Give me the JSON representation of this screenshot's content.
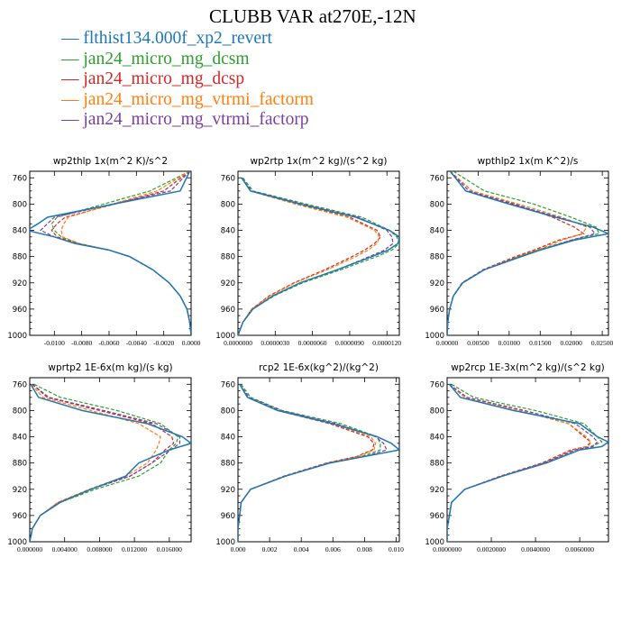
{
  "figure_title": "CLUBB VAR at270E,-12N",
  "legend": [
    {
      "label": "flthist134.000f_xp2_revert",
      "color": "#1f77b4",
      "dash": "solid"
    },
    {
      "label": "jan24_micro_mg_dcsm",
      "color": "#2ca02c",
      "dash": "dash"
    },
    {
      "label": "jan24_micro_mg_dcsp",
      "color": "#d62728",
      "dash": "dash"
    },
    {
      "label": "jan24_micro_mg_vtrmi_factorm",
      "color": "#ff7f0e",
      "dash": "dash"
    },
    {
      "label": "jan24_micro_mg_vtrmi_factorp",
      "color": "#7b3f9e",
      "dash": "dash"
    }
  ],
  "chart_data": [
    {
      "type": "line",
      "title": "wp2thlp   1x(m^2 K)/s^2",
      "y": [
        750,
        780,
        820,
        830,
        840,
        850,
        860,
        870,
        880,
        900,
        920,
        940,
        960,
        980,
        1000
      ],
      "ylim": [
        1000,
        750
      ],
      "yticks": [
        760,
        800,
        840,
        880,
        920,
        960,
        1000
      ],
      "xlim": [
        -0.0118,
        0.0
      ],
      "xticks": [
        -0.01,
        -0.008,
        -0.006,
        -0.004,
        -0.002,
        0.0
      ],
      "xtick_labels": [
        "-0.0100",
        "-0.0080",
        "-0.0060",
        "-0.0040",
        "-0.0020",
        "0.0000"
      ],
      "series": [
        {
          "values": [
            -0.0001,
            -0.0008,
            -0.0105,
            -0.0112,
            -0.012,
            -0.01,
            -0.0085,
            -0.006,
            -0.0045,
            -0.0028,
            -0.0016,
            -0.0008,
            -0.0003,
            -0.0001,
            0.0
          ]
        },
        {
          "values": [
            -0.0001,
            -0.003,
            -0.0098,
            -0.0102,
            -0.01,
            -0.0095,
            -0.0082,
            -0.006,
            -0.0045,
            -0.0028,
            -0.0016,
            -0.0008,
            -0.0003,
            -0.0001,
            0.0
          ]
        },
        {
          "values": [
            -0.0001,
            -0.002,
            -0.0092,
            -0.0098,
            -0.0102,
            -0.0098,
            -0.0083,
            -0.006,
            -0.0045,
            -0.0028,
            -0.0016,
            -0.0008,
            -0.0003,
            -0.0001,
            0.0
          ]
        },
        {
          "values": [
            -0.0001,
            -0.0025,
            -0.009,
            -0.0093,
            -0.0095,
            -0.0094,
            -0.0082,
            -0.006,
            -0.0045,
            -0.0028,
            -0.0016,
            -0.0008,
            -0.0003,
            -0.0001,
            0.0
          ]
        },
        {
          "values": [
            -0.0001,
            -0.0015,
            -0.01,
            -0.0105,
            -0.011,
            -0.01,
            -0.0084,
            -0.006,
            -0.0045,
            -0.0028,
            -0.0016,
            -0.0008,
            -0.0003,
            -0.0001,
            0.0
          ]
        }
      ]
    },
    {
      "type": "line",
      "title": "wp2rtp   1x(m^2 kg)/(s^2 kg)",
      "y": [
        760,
        780,
        800,
        820,
        840,
        850,
        860,
        870,
        880,
        900,
        920,
        940,
        960,
        980,
        1000
      ],
      "ylim": [
        1000,
        750
      ],
      "yticks": [
        760,
        800,
        840,
        880,
        920,
        960,
        1000
      ],
      "xlim": [
        0.0,
        1.3e-05
      ],
      "xticks": [
        0.0,
        3e-06,
        6e-06,
        9e-06,
        1.2e-05
      ],
      "xtick_labels": [
        "0.0000000",
        "0.0000030",
        "0.0000060",
        "0.0000090",
        "0.0000120"
      ],
      "series": [
        {
          "values": [
            3e-07,
            1e-06,
            5e-06,
            9.5e-06,
            1.22e-05,
            1.3e-05,
            1.29e-05,
            1.21e-05,
            1.08e-05,
            8e-06,
            5e-06,
            2.8e-06,
            1.2e-06,
            4e-07,
            0.0
          ]
        },
        {
          "values": [
            4e-07,
            1.2e-06,
            5.5e-06,
            1e-05,
            1.22e-05,
            1.28e-05,
            1.3e-05,
            1.24e-05,
            1.12e-05,
            8.3e-06,
            5.2e-06,
            2.9e-06,
            1.2e-06,
            4e-07,
            0.0
          ]
        },
        {
          "values": [
            3e-07,
            1e-06,
            4.8e-06,
            9e-06,
            1.12e-05,
            1.15e-05,
            1.1e-05,
            1.02e-05,
            9.2e-06,
            7e-06,
            4.5e-06,
            2.5e-06,
            1.1e-06,
            4e-07,
            0.0
          ]
        },
        {
          "values": [
            3e-07,
            1e-06,
            4.6e-06,
            8.8e-06,
            1.1e-05,
            1.14e-05,
            1.12e-05,
            1.05e-05,
            9.5e-06,
            7.2e-06,
            4.6e-06,
            2.6e-06,
            1.1e-06,
            4e-07,
            0.0
          ]
        },
        {
          "values": [
            3e-07,
            1.1e-06,
            5.2e-06,
            9.7e-06,
            1.2e-05,
            1.24e-05,
            1.25e-05,
            1.18e-05,
            1.06e-05,
            8e-06,
            5e-06,
            2.8e-06,
            1.2e-06,
            4e-07,
            0.0
          ]
        }
      ]
    },
    {
      "type": "line",
      "title": "wpthlp2   1x(m K^2)/s",
      "y": [
        750,
        780,
        800,
        820,
        835,
        845,
        855,
        870,
        880,
        900,
        920,
        940,
        960,
        980,
        1000
      ],
      "ylim": [
        1000,
        750
      ],
      "yticks": [
        760,
        800,
        840,
        880,
        920,
        960,
        1000
      ],
      "xlim": [
        0.0,
        0.026
      ],
      "xticks": [
        0.0,
        0.005,
        0.01,
        0.015,
        0.02,
        0.025
      ],
      "xtick_labels": [
        "0.00000",
        "0.00500",
        "0.01000",
        "0.01500",
        "0.02000",
        "0.02500"
      ],
      "series": [
        {
          "values": [
            0.0005,
            0.003,
            0.01,
            0.0175,
            0.0235,
            0.026,
            0.0205,
            0.015,
            0.012,
            0.006,
            0.0025,
            0.001,
            0.0004,
            0.0001,
            0.0
          ]
        },
        {
          "values": [
            0.001,
            0.006,
            0.014,
            0.02,
            0.024,
            0.0245,
            0.02,
            0.0145,
            0.0115,
            0.006,
            0.0025,
            0.001,
            0.0004,
            0.0001,
            0.0
          ]
        },
        {
          "values": [
            0.0005,
            0.004,
            0.011,
            0.017,
            0.0205,
            0.022,
            0.018,
            0.014,
            0.011,
            0.0058,
            0.0024,
            0.001,
            0.0004,
            0.0001,
            0.0
          ]
        },
        {
          "values": [
            0.0005,
            0.004,
            0.0115,
            0.0185,
            0.0225,
            0.0218,
            0.0185,
            0.0145,
            0.0115,
            0.006,
            0.0025,
            0.001,
            0.0004,
            0.0001,
            0.0
          ]
        },
        {
          "values": [
            0.0005,
            0.0035,
            0.0105,
            0.018,
            0.023,
            0.0238,
            0.02,
            0.015,
            0.0118,
            0.006,
            0.0025,
            0.001,
            0.0004,
            0.0001,
            0.0
          ]
        }
      ]
    },
    {
      "type": "line",
      "title": "wprtp2   1E-6x(m kg)/(s kg)",
      "y": [
        760,
        780,
        800,
        820,
        840,
        850,
        860,
        880,
        900,
        920,
        940,
        960,
        980,
        1000
      ],
      "ylim": [
        1000,
        750
      ],
      "yticks": [
        760,
        800,
        840,
        880,
        920,
        960,
        1000
      ],
      "xlim": [
        0.0,
        0.0185
      ],
      "xticks": [
        0.0,
        0.004,
        0.008,
        0.012,
        0.016
      ],
      "xtick_labels": [
        "0.000000",
        "0.004000",
        "0.008000",
        "0.012000",
        "0.016000"
      ],
      "series": [
        {
          "values": [
            0.0001,
            0.001,
            0.006,
            0.0135,
            0.0175,
            0.0185,
            0.016,
            0.0125,
            0.011,
            0.007,
            0.0035,
            0.0012,
            0.0003,
            0.0
          ]
        },
        {
          "values": [
            0.0005,
            0.0035,
            0.01,
            0.015,
            0.017,
            0.0168,
            0.016,
            0.015,
            0.0125,
            0.0075,
            0.0035,
            0.0012,
            0.0003,
            0.0
          ]
        },
        {
          "values": [
            0.0003,
            0.002,
            0.008,
            0.014,
            0.0163,
            0.0165,
            0.0155,
            0.014,
            0.0115,
            0.007,
            0.0033,
            0.0012,
            0.0003,
            0.0
          ]
        },
        {
          "values": [
            0.0002,
            0.0015,
            0.007,
            0.0125,
            0.015,
            0.0148,
            0.0145,
            0.0135,
            0.011,
            0.0068,
            0.0032,
            0.0012,
            0.0003,
            0.0
          ]
        },
        {
          "values": [
            0.0003,
            0.0022,
            0.0085,
            0.0145,
            0.0172,
            0.0172,
            0.0162,
            0.014,
            0.0115,
            0.007,
            0.0034,
            0.0012,
            0.0003,
            0.0
          ]
        }
      ]
    },
    {
      "type": "line",
      "title": "rcp2   1E-6x(kg^2)/(kg^2)",
      "y": [
        760,
        780,
        800,
        820,
        840,
        850,
        860,
        870,
        880,
        900,
        920,
        940,
        960,
        980,
        1000
      ],
      "ylim": [
        1000,
        750
      ],
      "yticks": [
        760,
        800,
        840,
        880,
        920,
        960,
        1000
      ],
      "xlim": [
        0.0,
        0.0102
      ],
      "xticks": [
        0.0,
        0.002,
        0.004,
        0.006,
        0.008,
        0.01
      ],
      "xtick_labels": [
        "0.000",
        "0.002",
        "0.004",
        "0.006",
        "0.008",
        "0.010"
      ],
      "series": [
        {
          "values": [
            0.0001,
            0.0006,
            0.0025,
            0.006,
            0.0088,
            0.0097,
            0.0102,
            0.008,
            0.0058,
            0.003,
            0.0008,
            0.0002,
            0.0001,
            0.0,
            0.0
          ]
        },
        {
          "values": [
            0.0002,
            0.0008,
            0.0028,
            0.0065,
            0.0088,
            0.009,
            0.009,
            0.0078,
            0.0058,
            0.003,
            0.0008,
            0.0002,
            0.0001,
            0.0,
            0.0
          ]
        },
        {
          "values": [
            0.0001,
            0.0006,
            0.0025,
            0.0058,
            0.0082,
            0.0086,
            0.0085,
            0.0075,
            0.0056,
            0.0029,
            0.0008,
            0.0002,
            0.0001,
            0.0,
            0.0
          ]
        },
        {
          "values": [
            0.0001,
            0.0006,
            0.0025,
            0.006,
            0.0084,
            0.0087,
            0.0086,
            0.0076,
            0.0057,
            0.003,
            0.0008,
            0.0002,
            0.0001,
            0.0,
            0.0
          ]
        },
        {
          "values": [
            0.0001,
            0.0007,
            0.0027,
            0.0062,
            0.0087,
            0.0092,
            0.0094,
            0.008,
            0.0058,
            0.003,
            0.0008,
            0.0002,
            0.0001,
            0.0,
            0.0
          ]
        }
      ]
    },
    {
      "type": "line",
      "title": "wp2rcp   1E-3x(m^2 kg)/(s^2 kg)",
      "y": [
        760,
        780,
        800,
        820,
        840,
        848,
        855,
        860,
        880,
        900,
        920,
        940,
        960,
        980,
        1000
      ],
      "ylim": [
        1000,
        750
      ],
      "yticks": [
        760,
        800,
        840,
        880,
        920,
        960,
        1000
      ],
      "xlim": [
        0.0,
        0.0073
      ],
      "xticks": [
        0.0,
        0.002,
        0.004,
        0.006
      ],
      "xtick_labels": [
        "0.0000000",
        "0.0020000",
        "0.0040000",
        "0.0060000"
      ],
      "series": [
        {
          "values": [
            0.0001,
            0.0006,
            0.003,
            0.006,
            0.0068,
            0.0073,
            0.007,
            0.006,
            0.0045,
            0.0025,
            0.0008,
            0.0002,
            0.0001,
            0.0,
            0.0
          ]
        },
        {
          "values": [
            0.0002,
            0.0012,
            0.004,
            0.0062,
            0.0068,
            0.007,
            0.0065,
            0.0058,
            0.0044,
            0.0025,
            0.0008,
            0.0002,
            0.0001,
            0.0,
            0.0
          ]
        },
        {
          "values": [
            0.0001,
            0.0008,
            0.0033,
            0.0055,
            0.0062,
            0.0065,
            0.0063,
            0.0056,
            0.0043,
            0.0024,
            0.0008,
            0.0002,
            0.0001,
            0.0,
            0.0
          ]
        },
        {
          "values": [
            0.0001,
            0.0008,
            0.0033,
            0.0055,
            0.0063,
            0.0065,
            0.0064,
            0.0057,
            0.0044,
            0.0025,
            0.0008,
            0.0002,
            0.0001,
            0.0,
            0.0
          ]
        },
        {
          "values": [
            0.0001,
            0.0009,
            0.0035,
            0.0058,
            0.0066,
            0.0068,
            0.0066,
            0.0058,
            0.0044,
            0.0025,
            0.0008,
            0.0002,
            0.0001,
            0.0,
            0.0
          ]
        }
      ]
    }
  ]
}
